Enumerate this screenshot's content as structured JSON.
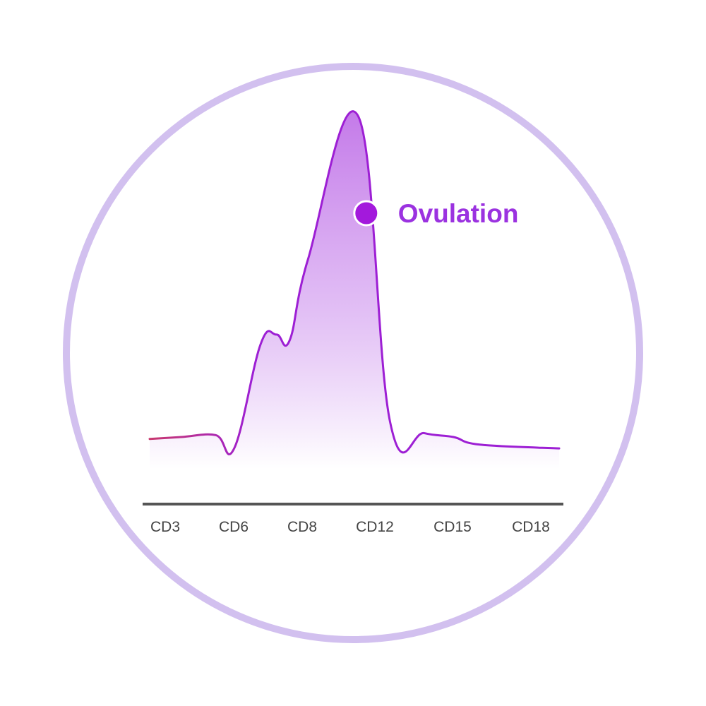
{
  "chart_data": {
    "type": "line",
    "title": "",
    "xlabel": "",
    "ylabel": "",
    "x_ticks": [
      "CD3",
      "CD6",
      "CD8",
      "CD12",
      "CD15",
      "CD18"
    ],
    "series": [
      {
        "points": [
          [
            3,
            5
          ],
          [
            4.2,
            6
          ],
          [
            5.5,
            7
          ],
          [
            6.2,
            0
          ],
          [
            7.2,
            55
          ],
          [
            7.8,
            60
          ],
          [
            8.3,
            57
          ],
          [
            9,
            100
          ],
          [
            10.9,
            175
          ],
          [
            12.1,
            14
          ],
          [
            13.4,
            8
          ],
          [
            14.5,
            6
          ],
          [
            15.5,
            2
          ],
          [
            18.5,
            0
          ]
        ]
      }
    ],
    "xlim": [
      3,
      18.5
    ],
    "ylim": [
      -10,
      175
    ],
    "grid": false,
    "legend": "none",
    "annotations": [
      {
        "text": "Ovulation",
        "x": 11.2,
        "y": 124
      }
    ],
    "colors": {
      "ring": "#d2c0ef",
      "line": "#9d1fd4",
      "line_start": "#c8386e",
      "fill_top": "#c47ae9",
      "annotation": "#9b32e0",
      "marker": "#a319dc",
      "axis": "#555555",
      "tick_text": "#444444"
    }
  }
}
